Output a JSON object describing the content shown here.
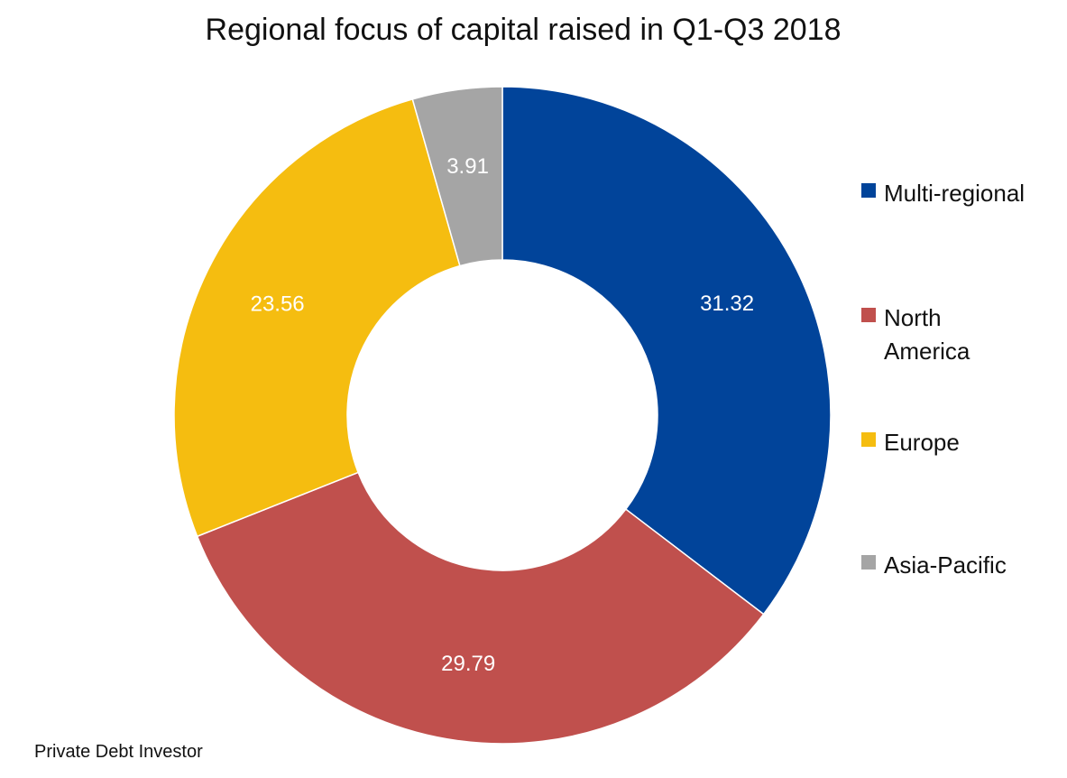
{
  "chart_data": {
    "type": "pie",
    "style": "donut",
    "title": "Regional focus of capital raised in Q1-Q3 2018",
    "categories": [
      "Multi-regional",
      "North America",
      "Europe",
      "Asia-Pacific"
    ],
    "values": [
      31.32,
      29.79,
      23.56,
      3.91
    ],
    "value_labels": [
      "31.32",
      "29.79",
      "23.56",
      "3.91"
    ],
    "colors": [
      "#01449A",
      "#C0504D",
      "#F5BD10",
      "#A5A5A5"
    ],
    "legend_placement": "right",
    "start": "top",
    "direction": "clockwise"
  },
  "source": "Private Debt Investor"
}
